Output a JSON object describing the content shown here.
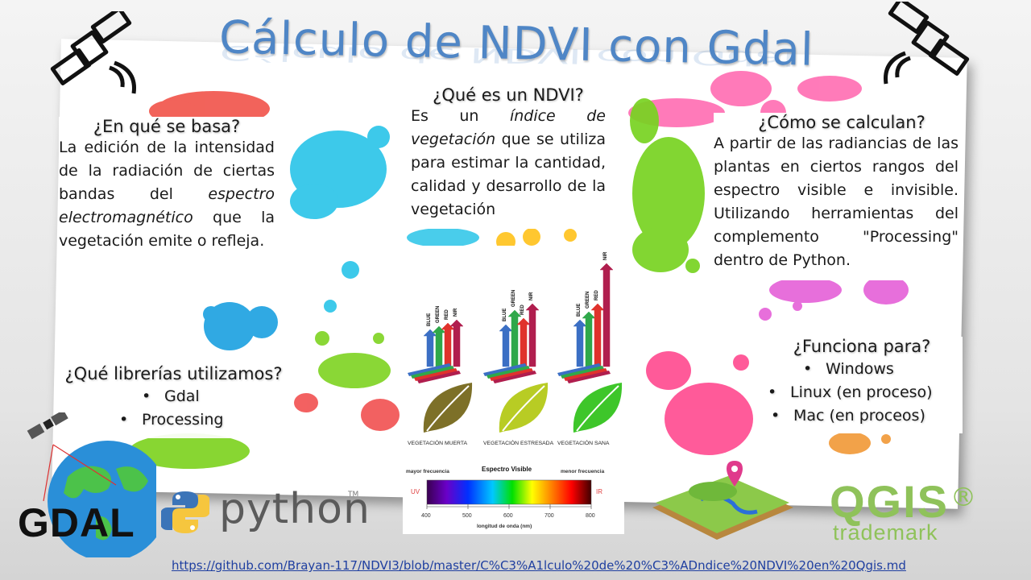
{
  "title": "Cálculo de NDVI con Gdal",
  "sections": {
    "basis": {
      "heading": "¿En qué se basa?",
      "text_1": "La edición de la intensidad de la radiación de ciertas bandas del ",
      "text_em": "espectro electromagnético",
      "text_2": " que la vegetación emite o refleja."
    },
    "what": {
      "heading": "¿Qué es un NDVI?",
      "text_1": "Es un ",
      "text_em": "índice de vegetación",
      "text_2": " que se utiliza para estimar la cantidad, calidad y desarrollo de la vegetación"
    },
    "how": {
      "heading": "¿Cómo se calculan?",
      "text": "A partir de las radiancias de las plantas en ciertos rangos del espectro visible e invisible. Utilizando herramientas del complemento \"Processing\" dentro de Python."
    },
    "libraries": {
      "heading": "¿Qué librerías utilizamos?",
      "items": [
        "Gdal",
        "Processing"
      ]
    },
    "platforms": {
      "heading": "¿Funciona para?",
      "items": [
        "Windows",
        "Linux (en proceso)",
        "Mac (en proceos)"
      ]
    }
  },
  "figure": {
    "band_labels": [
      "BLUE",
      "GREEN",
      "RED",
      "NIR"
    ],
    "captions": [
      "VEGETACIÓN MUERTA",
      "VEGETACIÓN ESTRESADA",
      "VEGETACIÓN SANA"
    ],
    "leaf_colors": [
      "#7d7028",
      "#b8cc24",
      "#3ec62a"
    ],
    "band_colors": [
      "#3b6fc4",
      "#2fa84a",
      "#e0322c",
      "#b01e4e"
    ],
    "spectrum": {
      "title": "Espectro Visible",
      "left_label": "mayor frecuencia",
      "right_label": "menor frecuencia",
      "uv": "UV",
      "ir": "IR",
      "ticks": [
        "400",
        "500",
        "600",
        "700",
        "800"
      ],
      "axis_label": "longitud de onda (nm)"
    }
  },
  "logos": {
    "gdal": "GDAL",
    "python": "python",
    "python_tm": "TM",
    "qgis": "QGIS",
    "qgis_reg": "®",
    "qgis_sub": "trademark"
  },
  "footer": {
    "url": "https://github.com/Brayan-117/NDVI3/blob/master/C%C3%A1lculo%20de%20%C3%ADndice%20NDVI%20en%20Qgis.md"
  },
  "colors": {
    "title": "#4f86c6",
    "link": "#1f3fa0",
    "qgis_green": "#8fc25a"
  },
  "icons": [
    "satellite-icon",
    "python-logo-icon",
    "globe-icon",
    "map-pin-icon"
  ]
}
